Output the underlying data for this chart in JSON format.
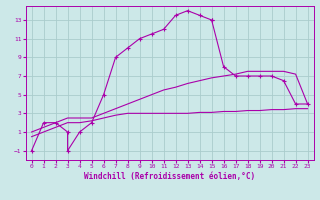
{
  "xlabel": "Windchill (Refroidissement éolien,°C)",
  "bg_color": "#cce8e8",
  "grid_color": "#aacccc",
  "line_color": "#aa00aa",
  "xlim": [
    -0.5,
    23.5
  ],
  "ylim": [
    -2,
    14.5
  ],
  "xticks": [
    0,
    1,
    2,
    3,
    4,
    5,
    6,
    7,
    8,
    9,
    10,
    11,
    12,
    13,
    14,
    15,
    16,
    17,
    18,
    19,
    20,
    21,
    22,
    23
  ],
  "yticks": [
    -1,
    1,
    3,
    5,
    7,
    9,
    11,
    13
  ],
  "series1_x": [
    0,
    1,
    2,
    3,
    3,
    4,
    5,
    6,
    7,
    8,
    9,
    10,
    11,
    12,
    13,
    14,
    15,
    15,
    16,
    17,
    18,
    19,
    20,
    21,
    22,
    23
  ],
  "series1_y": [
    -1,
    2,
    2,
    1,
    -1,
    1,
    2,
    5,
    9,
    10,
    11,
    11.5,
    12,
    13.5,
    14,
    13.5,
    13,
    13,
    8,
    7,
    7,
    7,
    7,
    6.5,
    4,
    4
  ],
  "series2_x": [
    0,
    1,
    2,
    3,
    4,
    5,
    6,
    7,
    8,
    9,
    10,
    11,
    12,
    13,
    14,
    15,
    16,
    17,
    18,
    19,
    20,
    21,
    22,
    23
  ],
  "series2_y": [
    0.5,
    1.0,
    1.5,
    2.0,
    2.0,
    2.2,
    2.5,
    2.8,
    3.0,
    3.0,
    3.0,
    3.0,
    3.0,
    3.0,
    3.1,
    3.1,
    3.2,
    3.2,
    3.3,
    3.3,
    3.4,
    3.4,
    3.5,
    3.5
  ],
  "series3_x": [
    0,
    1,
    2,
    3,
    4,
    5,
    6,
    7,
    8,
    9,
    10,
    11,
    12,
    13,
    14,
    15,
    16,
    17,
    18,
    19,
    20,
    21,
    22,
    23
  ],
  "series3_y": [
    1.0,
    1.5,
    2.0,
    2.5,
    2.5,
    2.5,
    3.0,
    3.5,
    4.0,
    4.5,
    5.0,
    5.5,
    5.8,
    6.2,
    6.5,
    6.8,
    7.0,
    7.2,
    7.5,
    7.5,
    7.5,
    7.5,
    7.2,
    4.0
  ]
}
